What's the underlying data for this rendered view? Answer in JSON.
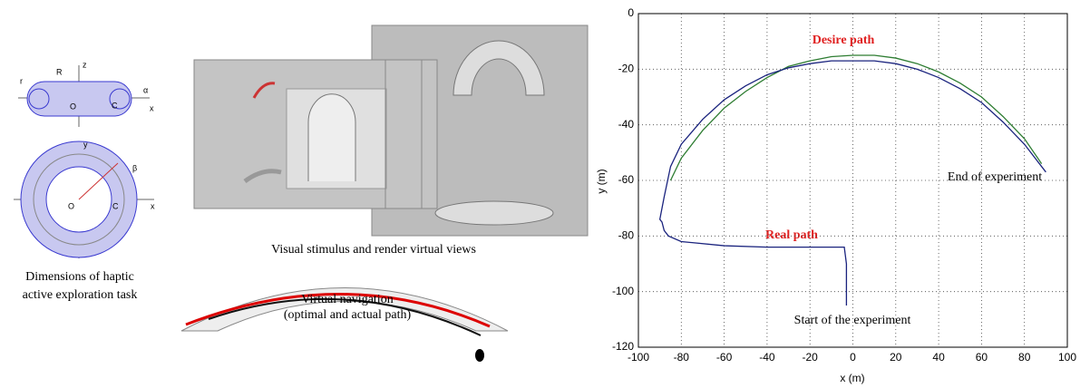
{
  "diagram": {
    "labels": [
      "z",
      "R",
      "r",
      "O",
      "C",
      "α",
      "x",
      "y",
      "β",
      "O",
      "C",
      "x"
    ],
    "caption": [
      "Dimensions of haptic",
      "active exploration task"
    ]
  },
  "renders": {
    "caption": "Visual stimulus and render virtual views",
    "navigation_caption": [
      "Virtual navigation",
      "(optimal and actual path)"
    ]
  },
  "chart_data": {
    "type": "line",
    "xlabel": "x (m)",
    "ylabel": "y (m)",
    "xlim": [
      -100,
      100
    ],
    "ylim": [
      -120,
      0
    ],
    "xticks": [
      -100,
      -80,
      -60,
      -40,
      -20,
      0,
      20,
      40,
      60,
      80,
      100
    ],
    "yticks": [
      -120,
      -100,
      -80,
      -60,
      -40,
      -20,
      0
    ],
    "grid": true,
    "annotations": [
      "Desire path",
      "Real path",
      "End of experiment",
      "Start of the experiment"
    ],
    "series": [
      {
        "color": "#2e7d32",
        "x": [
          -85,
          -80,
          -70,
          -60,
          -50,
          -40,
          -30,
          -20,
          -10,
          0,
          10,
          20,
          30,
          40,
          50,
          60,
          70,
          80,
          88
        ],
        "values": [
          -60,
          -52,
          -42,
          -34,
          -28,
          -23,
          -19,
          -17,
          -15.5,
          -15,
          -15,
          -16,
          -18,
          -21,
          -25,
          -30,
          -37,
          -45,
          -54
        ]
      },
      {
        "color": "#1a237e",
        "x": [
          -3,
          -3,
          -4,
          -10,
          -20,
          -40,
          -60,
          -80,
          -86,
          -88,
          -89,
          -90,
          -88,
          -85,
          -80,
          -70,
          -60,
          -50,
          -40,
          -30,
          -20,
          -10,
          0,
          10,
          20,
          30,
          40,
          50,
          60,
          70,
          80,
          90
        ],
        "values": [
          -105,
          -90,
          -84,
          -84,
          -84,
          -84,
          -83.5,
          -82,
          -80,
          -78,
          -75,
          -74,
          -66,
          -55,
          -47,
          -38,
          -31,
          -26,
          -22,
          -19.5,
          -18,
          -17,
          -17,
          -17,
          -18,
          -20,
          -23,
          -27,
          -32,
          -39,
          -47,
          -57
        ]
      }
    ]
  }
}
